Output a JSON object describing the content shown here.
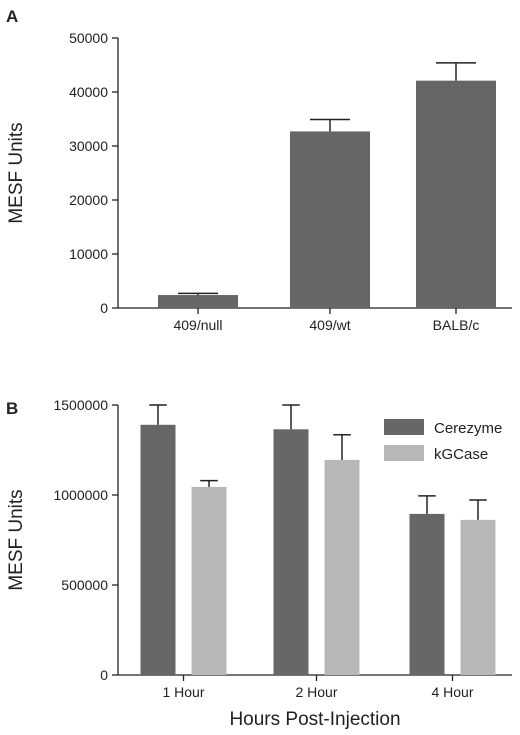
{
  "colors": {
    "series_dark": "#666666",
    "series_light": "#b8b8b8",
    "axis": "#222222"
  },
  "chart_data": [
    {
      "panel_label": "A",
      "type": "bar",
      "categories": [
        "409/null",
        "409/wt",
        "BALB/c"
      ],
      "series": [
        {
          "values": [
            2400,
            32700,
            42100
          ],
          "errors": [
            300,
            2200,
            3300
          ],
          "color": "#666666"
        }
      ],
      "ylabel": "MESF Units",
      "xlabel": "",
      "ylim": [
        0,
        50000
      ],
      "yticks": [
        0,
        10000,
        20000,
        30000,
        40000,
        50000
      ],
      "ytick_labels": [
        "0",
        "10000",
        "20000",
        "30000",
        "40000",
        "50000"
      ],
      "grid": false,
      "legend": null
    },
    {
      "panel_label": "B",
      "type": "bar",
      "categories": [
        "1 Hour",
        "2 Hour",
        "4 Hour"
      ],
      "series": [
        {
          "name": "Cerezyme",
          "values": [
            1390000,
            1365000,
            895000
          ],
          "errors": [
            110000,
            135000,
            100000
          ],
          "color": "#666666"
        },
        {
          "name": "kGCase",
          "values": [
            1045000,
            1195000,
            862000
          ],
          "errors": [
            35000,
            140000,
            110000
          ],
          "color": "#b8b8b8"
        }
      ],
      "ylabel": "MESF Units",
      "xlabel": "Hours Post-Injection",
      "ylim": [
        0,
        1500000
      ],
      "yticks": [
        0,
        500000,
        1000000,
        1500000
      ],
      "ytick_labels": [
        "0",
        "500000",
        "1000000",
        "1500000"
      ],
      "grid": false,
      "legend": "top-right"
    }
  ]
}
